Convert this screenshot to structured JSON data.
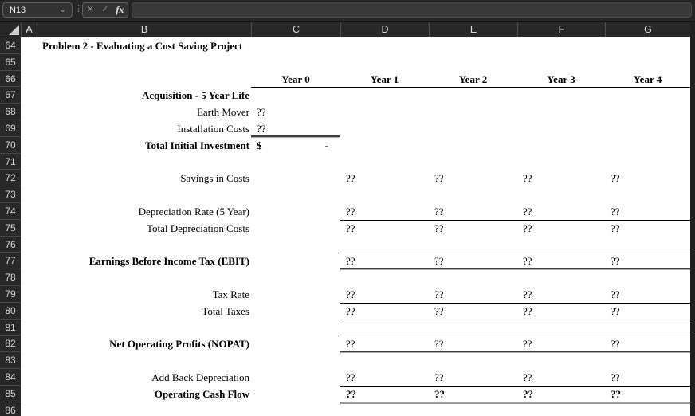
{
  "formula_bar": {
    "name_box": "N13",
    "formula_value": "",
    "fx_label": "fx",
    "cancel_icon": "✕",
    "enter_icon": "✓",
    "dropdown_icon": "⌄",
    "separator_icon": "⋮"
  },
  "column_headers": [
    "A",
    "B",
    "C",
    "D",
    "E",
    "F",
    "G"
  ],
  "row_numbers": [
    64,
    65,
    66,
    67,
    68,
    69,
    70,
    71,
    72,
    73,
    74,
    75,
    76,
    77,
    78,
    79,
    80,
    81,
    82,
    83,
    84,
    85,
    86
  ],
  "colors": {
    "chrome_bg": "#252525",
    "header_bg": "#282828",
    "grid_bg": "#ffffff",
    "text": "#000000",
    "header_text": "#dcdcdc"
  },
  "cells": [
    {
      "row": 64,
      "col": "B",
      "text": "Problem 2 - Evaluating a Cost Saving Project",
      "bold": true,
      "align": "left"
    },
    {
      "row": 66,
      "col": "C",
      "text": "Year 0",
      "bold": true,
      "align": "center"
    },
    {
      "row": 66,
      "col": "D",
      "text": "Year 1",
      "bold": true,
      "align": "center"
    },
    {
      "row": 66,
      "col": "E",
      "text": "Year 2",
      "bold": true,
      "align": "center"
    },
    {
      "row": 66,
      "col": "F",
      "text": "Year 3",
      "bold": true,
      "align": "center"
    },
    {
      "row": 66,
      "col": "G",
      "text": "Year 4",
      "bold": true,
      "align": "center"
    },
    {
      "row": 67,
      "col": "B",
      "text": "Acquisition - 5 Year Life",
      "bold": true,
      "align": "right"
    },
    {
      "row": 68,
      "col": "B",
      "text": "Earth Mover",
      "align": "right"
    },
    {
      "row": 68,
      "col": "C",
      "text": "??",
      "align": "left"
    },
    {
      "row": 69,
      "col": "B",
      "text": "Installation Costs",
      "align": "right"
    },
    {
      "row": 69,
      "col": "C",
      "text": "??",
      "align": "left"
    },
    {
      "row": 70,
      "col": "B",
      "text": "Total Initial Investment",
      "bold": true,
      "align": "right"
    },
    {
      "row": 70,
      "col": "C",
      "text": "$",
      "bold": true,
      "align": "left"
    },
    {
      "row": 70,
      "col": "C",
      "text": "-",
      "bold": true,
      "align": "right_indent"
    },
    {
      "row": 72,
      "col": "B",
      "text": "Savings in Costs",
      "align": "right"
    },
    {
      "row": 72,
      "col": "D",
      "text": "??",
      "align": "left"
    },
    {
      "row": 72,
      "col": "E",
      "text": "??",
      "align": "left"
    },
    {
      "row": 72,
      "col": "F",
      "text": "??",
      "align": "left"
    },
    {
      "row": 72,
      "col": "G",
      "text": "??",
      "align": "left"
    },
    {
      "row": 74,
      "col": "B",
      "text": "Depreciation Rate (5 Year)",
      "align": "right"
    },
    {
      "row": 74,
      "col": "D",
      "text": "??",
      "align": "left"
    },
    {
      "row": 74,
      "col": "E",
      "text": "??",
      "align": "left"
    },
    {
      "row": 74,
      "col": "F",
      "text": "??",
      "align": "left"
    },
    {
      "row": 74,
      "col": "G",
      "text": "??",
      "align": "left"
    },
    {
      "row": 75,
      "col": "B",
      "text": "Total Depreciation Costs",
      "align": "right"
    },
    {
      "row": 75,
      "col": "D",
      "text": "??",
      "align": "left"
    },
    {
      "row": 75,
      "col": "E",
      "text": "??",
      "align": "left"
    },
    {
      "row": 75,
      "col": "F",
      "text": "??",
      "align": "left"
    },
    {
      "row": 75,
      "col": "G",
      "text": "??",
      "align": "left"
    },
    {
      "row": 77,
      "col": "B",
      "text": "Earnings Before Income Tax (EBIT)",
      "bold": true,
      "align": "right"
    },
    {
      "row": 77,
      "col": "D",
      "text": "??",
      "align": "left"
    },
    {
      "row": 77,
      "col": "E",
      "text": "??",
      "align": "left"
    },
    {
      "row": 77,
      "col": "F",
      "text": "??",
      "align": "left"
    },
    {
      "row": 77,
      "col": "G",
      "text": "??",
      "align": "left"
    },
    {
      "row": 79,
      "col": "B",
      "text": "Tax Rate",
      "align": "right"
    },
    {
      "row": 79,
      "col": "D",
      "text": "??",
      "align": "left"
    },
    {
      "row": 79,
      "col": "E",
      "text": "??",
      "align": "left"
    },
    {
      "row": 79,
      "col": "F",
      "text": "??",
      "align": "left"
    },
    {
      "row": 79,
      "col": "G",
      "text": "??",
      "align": "left"
    },
    {
      "row": 80,
      "col": "B",
      "text": "Total Taxes",
      "align": "right"
    },
    {
      "row": 80,
      "col": "D",
      "text": "??",
      "align": "left"
    },
    {
      "row": 80,
      "col": "E",
      "text": "??",
      "align": "left"
    },
    {
      "row": 80,
      "col": "F",
      "text": "??",
      "align": "left"
    },
    {
      "row": 80,
      "col": "G",
      "text": "??",
      "align": "left"
    },
    {
      "row": 82,
      "col": "B",
      "text": "Net Operating Profits (NOPAT)",
      "bold": true,
      "align": "right"
    },
    {
      "row": 82,
      "col": "D",
      "text": "??",
      "align": "left"
    },
    {
      "row": 82,
      "col": "E",
      "text": "??",
      "align": "left"
    },
    {
      "row": 82,
      "col": "F",
      "text": "??",
      "align": "left"
    },
    {
      "row": 82,
      "col": "G",
      "text": "??",
      "align": "left"
    },
    {
      "row": 84,
      "col": "B",
      "text": "Add Back Depreciation",
      "align": "right"
    },
    {
      "row": 84,
      "col": "D",
      "text": "??",
      "align": "left"
    },
    {
      "row": 84,
      "col": "E",
      "text": "??",
      "align": "left"
    },
    {
      "row": 84,
      "col": "F",
      "text": "??",
      "align": "left"
    },
    {
      "row": 84,
      "col": "G",
      "text": "??",
      "align": "left"
    },
    {
      "row": 85,
      "col": "B",
      "text": "Operating Cash Flow",
      "bold": true,
      "align": "right"
    },
    {
      "row": 85,
      "col": "D",
      "text": "??",
      "bold": true,
      "align": "left"
    },
    {
      "row": 85,
      "col": "E",
      "text": "??",
      "bold": true,
      "align": "left"
    },
    {
      "row": 85,
      "col": "F",
      "text": "??",
      "bold": true,
      "align": "left"
    },
    {
      "row": 85,
      "col": "G",
      "text": "??",
      "bold": true,
      "align": "left"
    }
  ]
}
